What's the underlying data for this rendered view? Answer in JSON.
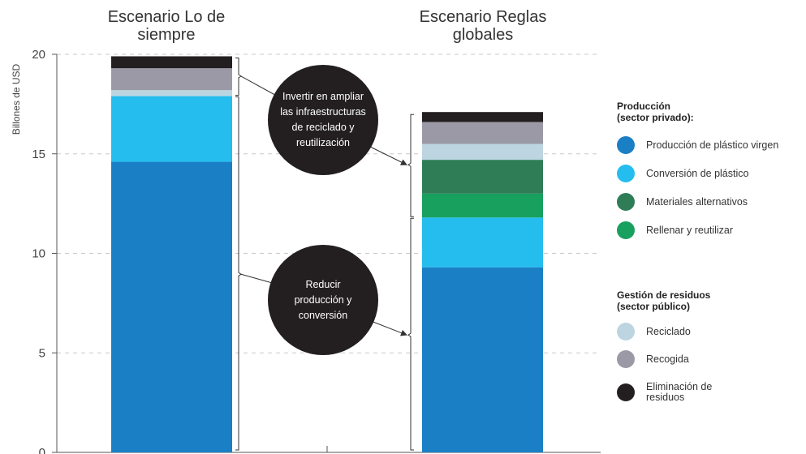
{
  "colors": {
    "produccion_virgen": "#1a7fc4",
    "conversion": "#24bdee",
    "materiales_alternativos": "#2e7d57",
    "rellenar_reutilizar": "#18a05e",
    "reciclado": "#bcd5e0",
    "recogida": "#9a99a5",
    "eliminacion": "#231f20"
  },
  "chart_data": {
    "type": "bar",
    "stacked": true,
    "categories": [
      "Escenario Lo de siempre",
      "Escenario Reglas globales"
    ],
    "category_lines": [
      [
        "Escenario Lo de",
        "siempre"
      ],
      [
        "Escenario Reglas",
        "globales"
      ]
    ],
    "ylabel": "Billones de USD",
    "ylim": [
      0,
      20
    ],
    "yticks": [
      0,
      5,
      10,
      15,
      20
    ],
    "grid": true,
    "legend_position": "right",
    "series": [
      {
        "name": "Producción de plástico virgen",
        "color_key": "produccion_virgen",
        "values": [
          14.6,
          9.3
        ]
      },
      {
        "name": "Conversión de plástico",
        "color_key": "conversion",
        "values": [
          3.3,
          2.5
        ]
      },
      {
        "name": "Rellenar y reutilizar",
        "color_key": "rellenar_reutilizar",
        "values": [
          0,
          1.2
        ]
      },
      {
        "name": "Materiales alternativos",
        "color_key": "materiales_alternativos",
        "values": [
          0,
          1.7
        ]
      },
      {
        "name": "Reciclado",
        "color_key": "reciclado",
        "values": [
          0.3,
          0.8
        ]
      },
      {
        "name": "Recogida",
        "color_key": "recogida",
        "values": [
          1.1,
          1.1
        ]
      },
      {
        "name": "Eliminación de residuos",
        "color_key": "eliminacion",
        "values": [
          0.6,
          0.5
        ]
      }
    ],
    "annotations": [
      {
        "id": "invertir",
        "lines": [
          "Invertir en ampliar",
          "las infraestructuras",
          "de reciclado y",
          "reutilización"
        ]
      },
      {
        "id": "reducir",
        "lines": [
          "Reducir",
          "producción y",
          "conversión"
        ]
      }
    ]
  },
  "legend": {
    "produccion_heading": [
      "Producción",
      "(sector privado):"
    ],
    "produccion_items": [
      {
        "label": "Producción de plástico virgen",
        "color_key": "produccion_virgen"
      },
      {
        "label": "Conversión de plástico",
        "color_key": "conversion"
      },
      {
        "label": "Materiales alternativos",
        "color_key": "materiales_alternativos"
      },
      {
        "label": "Rellenar y reutilizar",
        "color_key": "rellenar_reutilizar"
      }
    ],
    "residuos_heading": [
      "Gestión de residuos",
      "(sector público)"
    ],
    "residuos_items": [
      {
        "label": "Reciclado",
        "color_key": "reciclado"
      },
      {
        "label": "Recogida",
        "color_key": "recogida"
      },
      {
        "label": "Eliminación de residuos",
        "lines": [
          "Eliminación de",
          "residuos"
        ],
        "color_key": "eliminacion"
      }
    ]
  }
}
